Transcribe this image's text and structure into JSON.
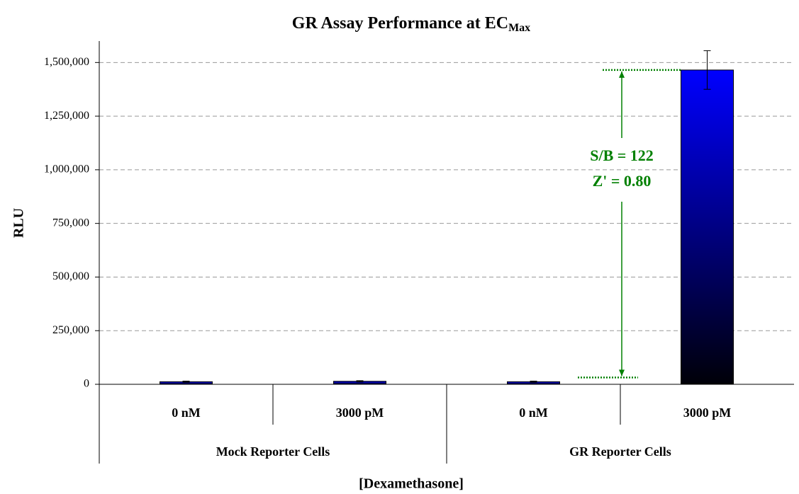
{
  "chart_data": {
    "type": "bar",
    "title": "GR Assay Performance at EC",
    "title_subscript": "Max",
    "x_label": "[Dexamethasone]",
    "y_label": "RLU",
    "categories": [
      "0 nM",
      "3000 pM",
      "0 nM",
      "3000 pM"
    ],
    "groups": [
      "Mock Reporter Cells",
      "GR Reporter Cells"
    ],
    "values": [
      12000,
      14000,
      12000,
      1465000
    ],
    "errors": [
      3000,
      3000,
      3000,
      90000
    ],
    "color": "#0000ff",
    "ylim": [
      0,
      1600000
    ],
    "yticks": [
      0,
      {
        "value": 250000,
        "label": "250,000"
      },
      {
        "value": 500000,
        "label": "500,000"
      },
      {
        "value": 750000,
        "label": "750,000"
      },
      {
        "value": 1000000,
        "label": "1,000,000"
      },
      {
        "value": 1250000,
        "label": "1,250,000"
      },
      {
        "value": 1500000,
        "label": "1,500,000"
      }
    ],
    "grid": true,
    "annotations": [
      "S/B = 122",
      "Z' = 0.80"
    ],
    "annotation_color": "#008000"
  }
}
